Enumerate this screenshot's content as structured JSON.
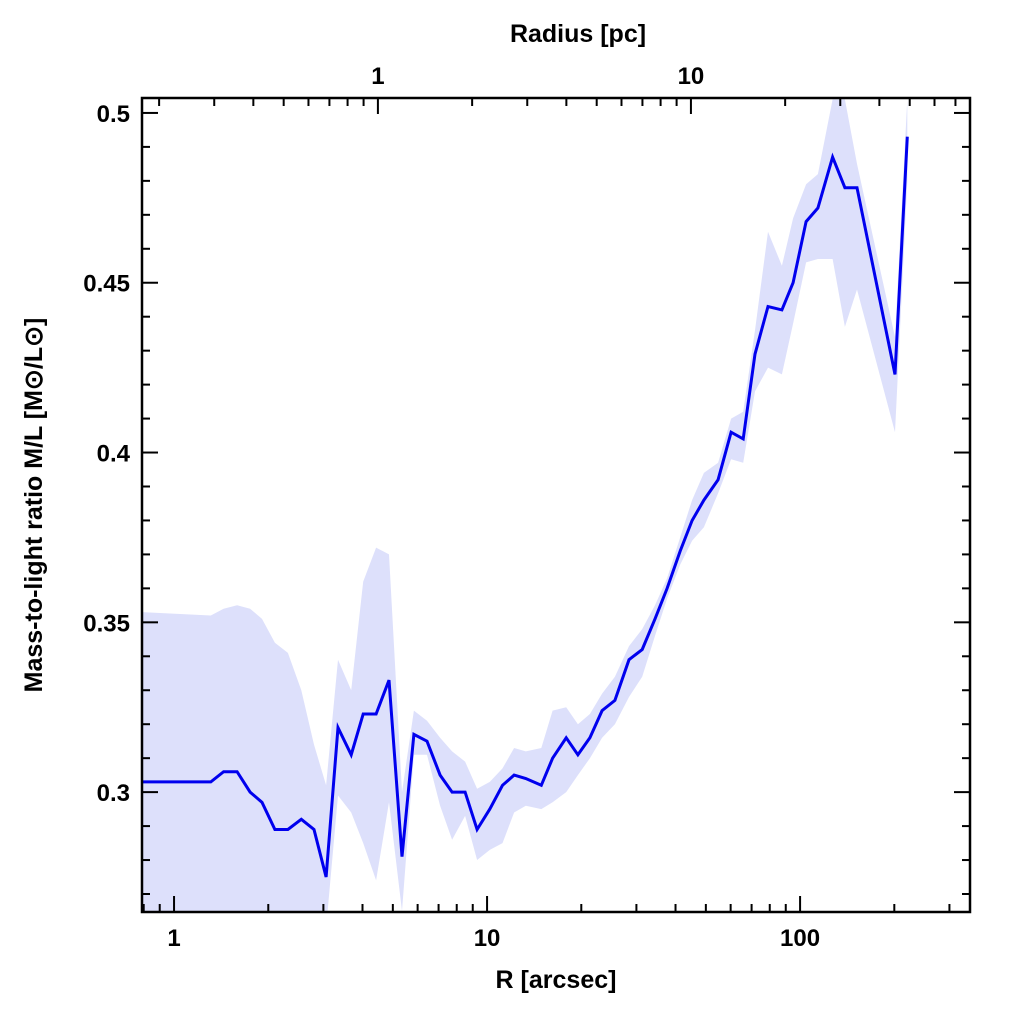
{
  "chart_data": {
    "type": "line",
    "title": "",
    "xlabel": "R [arcsec]",
    "ylabel": "Mass-to-light ratio M/L [M⊙/L⊙]",
    "top_xlabel": "Radius [pc]",
    "xscale": "log",
    "xlim": [
      0.79,
      349
    ],
    "ylim": [
      0.2647,
      0.5044
    ],
    "x_ticks": [
      1,
      10,
      100
    ],
    "x_tick_labels": [
      "1",
      "10",
      "100"
    ],
    "y_ticks": [
      0.3,
      0.35,
      0.4,
      0.45,
      0.5
    ],
    "y_tick_labels": [
      "0.3",
      "0.35",
      "0.4",
      "0.45",
      "0.5"
    ],
    "top_axis": {
      "arcsec_per_pc": 4.48,
      "ticks": [
        1,
        10
      ],
      "tick_labels": [
        "1",
        "10"
      ]
    },
    "grid": false,
    "colors": {
      "line": "#0000ee",
      "band": "#dde0fb",
      "axes": "#000000"
    },
    "series": [
      {
        "name": "M/L",
        "x": [
          0.79,
          1.31,
          1.44,
          1.59,
          1.75,
          1.91,
          2.1,
          2.31,
          2.55,
          2.8,
          3.06,
          3.34,
          3.68,
          4.02,
          4.42,
          4.86,
          5.35,
          5.84,
          6.43,
          7.08,
          7.73,
          8.51,
          9.29,
          10.2,
          11.2,
          12.2,
          13.3,
          14.9,
          16.2,
          17.9,
          19.5,
          21.3,
          23.3,
          25.6,
          28.4,
          31.3,
          34.4,
          37.6,
          41.4,
          45.2,
          49.3,
          54.7,
          60.2,
          65.8,
          71.8,
          79.0,
          87.5,
          95.0,
          104.5,
          114,
          127,
          139,
          152,
          201,
          220
        ],
        "y": [
          0.303,
          0.303,
          0.306,
          0.306,
          0.3,
          0.297,
          0.289,
          0.289,
          0.292,
          0.289,
          0.275,
          0.319,
          0.311,
          0.323,
          0.323,
          0.333,
          0.281,
          0.317,
          0.315,
          0.305,
          0.3,
          0.3,
          0.289,
          0.295,
          0.302,
          0.305,
          0.304,
          0.302,
          0.31,
          0.316,
          0.311,
          0.316,
          0.324,
          0.327,
          0.339,
          0.342,
          0.351,
          0.36,
          0.371,
          0.38,
          0.386,
          0.392,
          0.406,
          0.404,
          0.429,
          0.443,
          0.442,
          0.45,
          0.468,
          0.472,
          0.487,
          0.478,
          0.478,
          0.423,
          0.493
        ],
        "lower": [
          0.26,
          0.26,
          0.26,
          0.26,
          0.26,
          0.26,
          0.26,
          0.26,
          0.26,
          0.26,
          0.26,
          0.299,
          0.294,
          0.285,
          0.274,
          0.297,
          0.265,
          0.311,
          0.311,
          0.296,
          0.286,
          0.293,
          0.28,
          0.283,
          0.285,
          0.294,
          0.296,
          0.295,
          0.297,
          0.3,
          0.305,
          0.31,
          0.316,
          0.32,
          0.328,
          0.334,
          0.346,
          0.357,
          0.367,
          0.374,
          0.378,
          0.388,
          0.398,
          0.397,
          0.418,
          0.425,
          0.423,
          0.438,
          0.456,
          0.457,
          0.457,
          0.437,
          0.448,
          0.406,
          0.48
        ],
        "upper": [
          0.353,
          0.352,
          0.354,
          0.355,
          0.354,
          0.351,
          0.344,
          0.341,
          0.33,
          0.314,
          0.302,
          0.339,
          0.33,
          0.362,
          0.372,
          0.37,
          0.3,
          0.324,
          0.321,
          0.316,
          0.312,
          0.309,
          0.301,
          0.303,
          0.307,
          0.313,
          0.312,
          0.313,
          0.324,
          0.325,
          0.32,
          0.323,
          0.329,
          0.334,
          0.343,
          0.348,
          0.355,
          0.363,
          0.375,
          0.386,
          0.394,
          0.397,
          0.41,
          0.412,
          0.436,
          0.465,
          0.455,
          0.469,
          0.479,
          0.482,
          0.504,
          0.504,
          0.485,
          0.434,
          0.504
        ]
      }
    ]
  }
}
